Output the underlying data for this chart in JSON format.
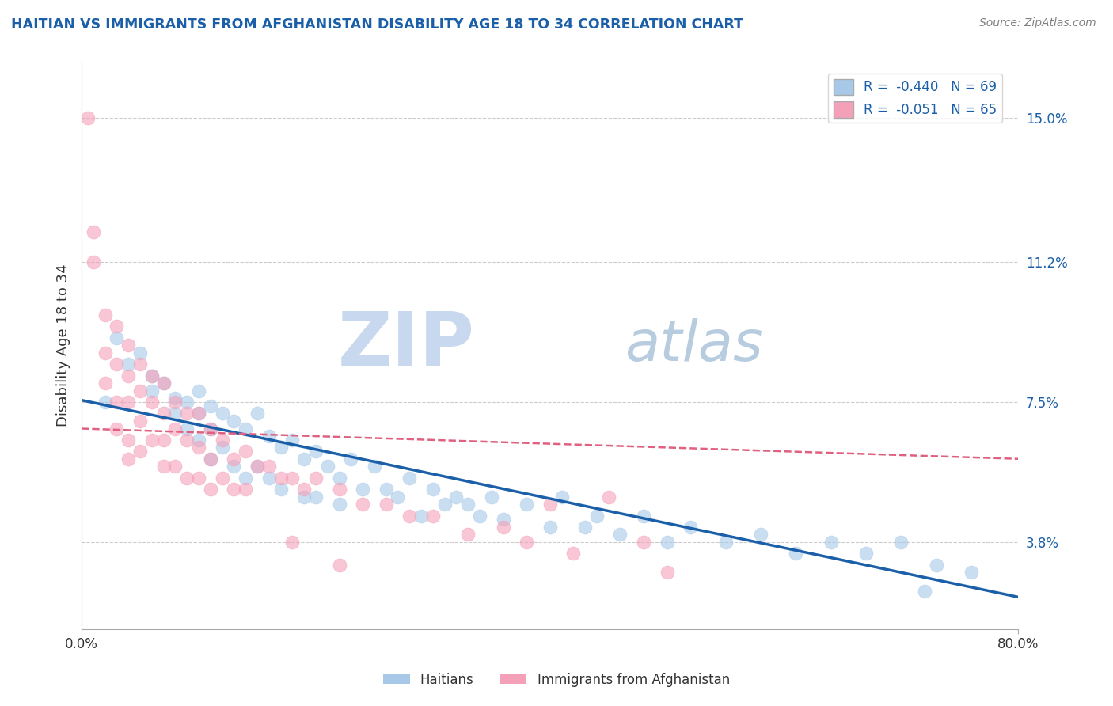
{
  "title": "HAITIAN VS IMMIGRANTS FROM AFGHANISTAN DISABILITY AGE 18 TO 34 CORRELATION CHART",
  "source": "Source: ZipAtlas.com",
  "ylabel": "Disability Age 18 to 34",
  "xlabel": "",
  "watermark_zip": "ZIP",
  "watermark_atlas": "atlas",
  "xlim": [
    0.0,
    0.8
  ],
  "ylim": [
    0.015,
    0.165
  ],
  "ytick_labels_right": [
    "3.8%",
    "7.5%",
    "11.2%",
    "15.0%"
  ],
  "ytick_values_right": [
    0.038,
    0.075,
    0.112,
    0.15
  ],
  "R_blue": -0.44,
  "N_blue": 69,
  "R_pink": -0.051,
  "N_pink": 65,
  "blue_color": "#a8c8e8",
  "pink_color": "#f4a0b8",
  "blue_line_color": "#1a5fa8",
  "pink_line_color": "#e06080",
  "legend_blue_label": "Haitians",
  "legend_pink_label": "Immigrants from Afghanistan",
  "background_color": "#ffffff",
  "grid_color": "#cccccc",
  "title_color": "#1a5fa8",
  "source_color": "#808080",
  "right_tick_color": "#1a5fa8",
  "blue_scatter_x": [
    0.02,
    0.03,
    0.04,
    0.05,
    0.06,
    0.06,
    0.07,
    0.08,
    0.08,
    0.09,
    0.09,
    0.1,
    0.1,
    0.1,
    0.11,
    0.11,
    0.11,
    0.12,
    0.12,
    0.13,
    0.13,
    0.14,
    0.14,
    0.15,
    0.15,
    0.16,
    0.16,
    0.17,
    0.17,
    0.18,
    0.19,
    0.19,
    0.2,
    0.2,
    0.21,
    0.22,
    0.22,
    0.23,
    0.24,
    0.25,
    0.26,
    0.27,
    0.28,
    0.29,
    0.3,
    0.31,
    0.32,
    0.33,
    0.34,
    0.35,
    0.36,
    0.38,
    0.4,
    0.41,
    0.43,
    0.44,
    0.46,
    0.48,
    0.5,
    0.52,
    0.55,
    0.58,
    0.61,
    0.64,
    0.67,
    0.7,
    0.73,
    0.76,
    0.72
  ],
  "blue_scatter_y": [
    0.075,
    0.092,
    0.085,
    0.088,
    0.082,
    0.078,
    0.08,
    0.076,
    0.072,
    0.075,
    0.068,
    0.078,
    0.072,
    0.065,
    0.074,
    0.068,
    0.06,
    0.072,
    0.063,
    0.07,
    0.058,
    0.068,
    0.055,
    0.072,
    0.058,
    0.066,
    0.055,
    0.063,
    0.052,
    0.065,
    0.06,
    0.05,
    0.062,
    0.05,
    0.058,
    0.055,
    0.048,
    0.06,
    0.052,
    0.058,
    0.052,
    0.05,
    0.055,
    0.045,
    0.052,
    0.048,
    0.05,
    0.048,
    0.045,
    0.05,
    0.044,
    0.048,
    0.042,
    0.05,
    0.042,
    0.045,
    0.04,
    0.045,
    0.038,
    0.042,
    0.038,
    0.04,
    0.035,
    0.038,
    0.035,
    0.038,
    0.032,
    0.03,
    0.025
  ],
  "pink_scatter_x": [
    0.005,
    0.01,
    0.01,
    0.02,
    0.02,
    0.02,
    0.03,
    0.03,
    0.03,
    0.03,
    0.04,
    0.04,
    0.04,
    0.04,
    0.04,
    0.05,
    0.05,
    0.05,
    0.05,
    0.06,
    0.06,
    0.06,
    0.07,
    0.07,
    0.07,
    0.07,
    0.08,
    0.08,
    0.08,
    0.09,
    0.09,
    0.09,
    0.1,
    0.1,
    0.1,
    0.11,
    0.11,
    0.11,
    0.12,
    0.12,
    0.13,
    0.13,
    0.14,
    0.14,
    0.15,
    0.16,
    0.17,
    0.18,
    0.19,
    0.2,
    0.22,
    0.24,
    0.26,
    0.28,
    0.3,
    0.33,
    0.36,
    0.38,
    0.4,
    0.42,
    0.45,
    0.48,
    0.5,
    0.18,
    0.22
  ],
  "pink_scatter_y": [
    0.15,
    0.12,
    0.112,
    0.098,
    0.088,
    0.08,
    0.095,
    0.085,
    0.075,
    0.068,
    0.09,
    0.082,
    0.075,
    0.065,
    0.06,
    0.085,
    0.078,
    0.07,
    0.062,
    0.082,
    0.075,
    0.065,
    0.08,
    0.072,
    0.065,
    0.058,
    0.075,
    0.068,
    0.058,
    0.072,
    0.065,
    0.055,
    0.072,
    0.063,
    0.055,
    0.068,
    0.06,
    0.052,
    0.065,
    0.055,
    0.06,
    0.052,
    0.062,
    0.052,
    0.058,
    0.058,
    0.055,
    0.055,
    0.052,
    0.055,
    0.052,
    0.048,
    0.048,
    0.045,
    0.045,
    0.04,
    0.042,
    0.038,
    0.048,
    0.035,
    0.05,
    0.038,
    0.03,
    0.038,
    0.032
  ]
}
